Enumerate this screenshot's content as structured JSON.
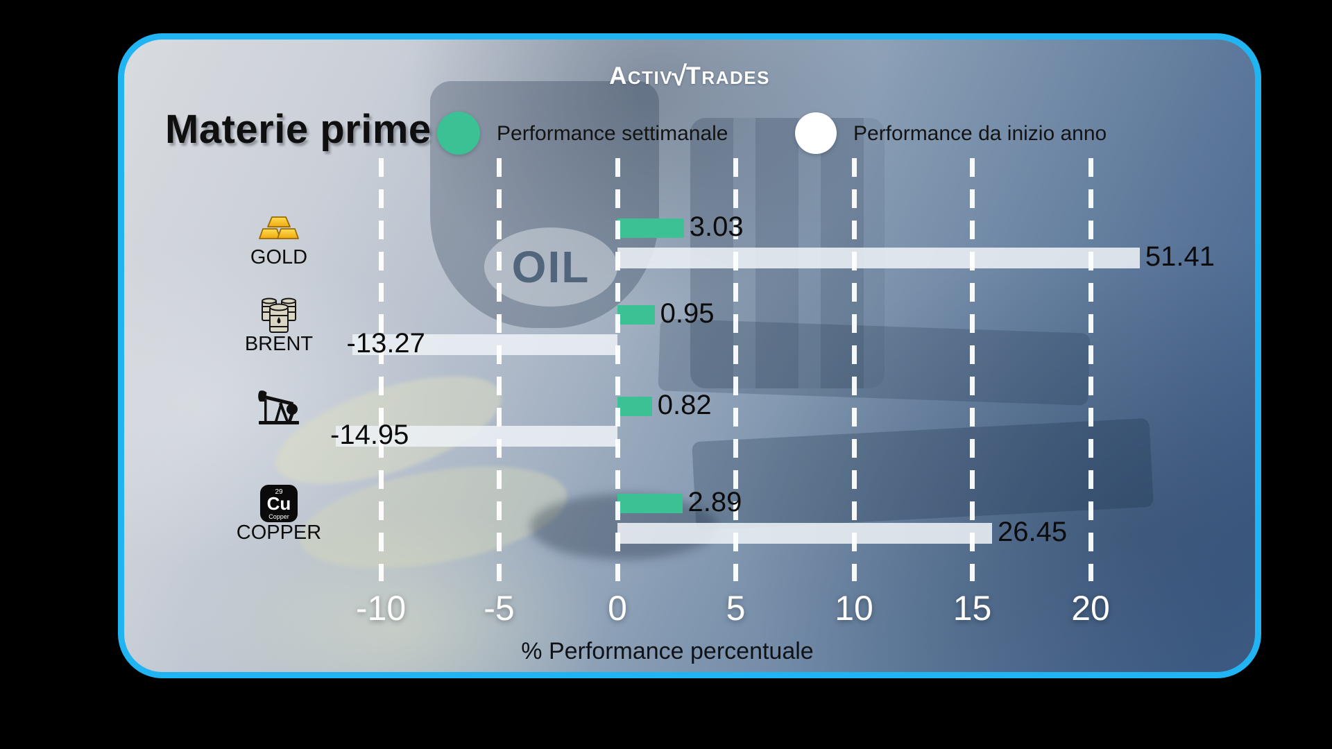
{
  "brand": {
    "logo_left_initial": "A",
    "logo_left_rest": "CTIV",
    "logo_slash": "√",
    "logo_right_initial": "T",
    "logo_right_rest": "RADES"
  },
  "title": "Materie prime",
  "legend": {
    "weekly": {
      "label": "Performance settimanale",
      "color": "#3BC193"
    },
    "ytd": {
      "label": "Performance da inizio anno",
      "color": "#FFFFFF"
    }
  },
  "background": {
    "oil_badge_text": "OIL"
  },
  "chart_data": {
    "type": "bar",
    "orientation": "horizontal",
    "title": "Materie prime",
    "xlabel": "% Performance percentuale",
    "x_ticks": [
      -10,
      -5,
      0,
      5,
      10,
      15,
      20
    ],
    "xlim": [
      -16,
      22
    ],
    "grid": "dashed-vertical-white-lines",
    "legend_position": "top",
    "bar_colors": {
      "weekly": "#3BC193",
      "ytd": "#ECF0F5"
    },
    "series": [
      {
        "name": "Performance settimanale",
        "values": [
          3.03,
          0.95,
          0.82,
          2.89
        ]
      },
      {
        "name": "Performance da inizio anno",
        "values": [
          51.41,
          -13.27,
          -14.95,
          26.45
        ]
      }
    ],
    "rows": [
      {
        "id": "gold",
        "label": "GOLD",
        "icon": "gold-bars-icon",
        "weekly": 3.03,
        "ytd": 51.41
      },
      {
        "id": "brent",
        "label": "BRENT",
        "icon": "oil-barrels-icon",
        "weekly": 0.95,
        "ytd": -13.27
      },
      {
        "id": "wti",
        "label": "",
        "icon": "oil-pumpjack-icon",
        "weekly": 0.82,
        "ytd": -14.95
      },
      {
        "id": "copper",
        "label": "COPPER",
        "icon": "copper-element-icon",
        "weekly": 2.89,
        "ytd": 26.45
      }
    ],
    "copper_icon_text": {
      "number": "29",
      "symbol": "Cu",
      "name": "Copper"
    }
  }
}
